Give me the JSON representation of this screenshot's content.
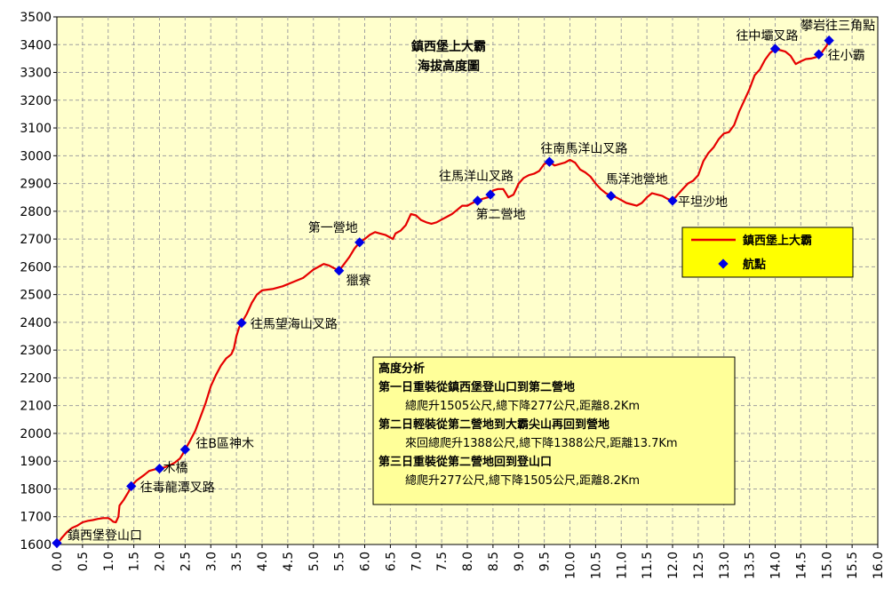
{
  "chart_data": {
    "type": "line",
    "title": "鎮西堡上大霸",
    "subtitle": "海拔高度圖",
    "xlabel": "",
    "ylabel": "",
    "xlim": [
      0,
      16
    ],
    "ylim": [
      1600,
      3500
    ],
    "x_ticks": [
      "0.0",
      "0.5",
      "1.0",
      "1.5",
      "2.0",
      "2.5",
      "3.0",
      "3.5",
      "4.0",
      "4.5",
      "5.0",
      "5.5",
      "6.0",
      "6.5",
      "7.0",
      "7.5",
      "8.0",
      "8.5",
      "9.0",
      "9.5",
      "10.0",
      "10.5",
      "11.0",
      "11.5",
      "12.0",
      "12.5",
      "13.0",
      "13.5",
      "14.0",
      "14.5",
      "15.0",
      "15.5",
      "16.0"
    ],
    "y_ticks": [
      "1600",
      "1700",
      "1800",
      "1900",
      "2000",
      "2100",
      "2200",
      "2300",
      "2400",
      "2500",
      "2600",
      "2700",
      "2800",
      "2900",
      "3000",
      "3100",
      "3200",
      "3300",
      "3400",
      "3500"
    ],
    "grid": true,
    "colors": {
      "plot_bg": "#FFFFCC",
      "line": "#E60000",
      "marker": "#0000E6",
      "grid": "#A0A0A0",
      "legend_bg": "#FFFF00",
      "note_bg": "#FFFF99"
    },
    "legend": {
      "position": "right",
      "entries": [
        {
          "label": "鎮西堡上大霸",
          "kind": "line"
        },
        {
          "label": "航點",
          "kind": "marker"
        }
      ]
    },
    "series": [
      {
        "name": "鎮西堡上大霸",
        "kind": "line",
        "points": [
          [
            0.0,
            1600
          ],
          [
            0.1,
            1625
          ],
          [
            0.2,
            1645
          ],
          [
            0.3,
            1660
          ],
          [
            0.4,
            1668
          ],
          [
            0.5,
            1680
          ],
          [
            0.6,
            1685
          ],
          [
            0.7,
            1688
          ],
          [
            0.8,
            1692
          ],
          [
            0.9,
            1695
          ],
          [
            1.0,
            1695
          ],
          [
            1.05,
            1690
          ],
          [
            1.1,
            1682
          ],
          [
            1.15,
            1680
          ],
          [
            1.2,
            1700
          ],
          [
            1.22,
            1740
          ],
          [
            1.3,
            1760
          ],
          [
            1.4,
            1790
          ],
          [
            1.45,
            1810
          ],
          [
            1.55,
            1830
          ],
          [
            1.7,
            1850
          ],
          [
            1.8,
            1865
          ],
          [
            1.9,
            1870
          ],
          [
            2.0,
            1873
          ],
          [
            2.1,
            1878
          ],
          [
            2.2,
            1885
          ],
          [
            2.3,
            1895
          ],
          [
            2.4,
            1910
          ],
          [
            2.45,
            1925
          ],
          [
            2.5,
            1942
          ],
          [
            2.6,
            1975
          ],
          [
            2.7,
            2010
          ],
          [
            2.8,
            2060
          ],
          [
            2.9,
            2110
          ],
          [
            3.0,
            2170
          ],
          [
            3.1,
            2210
          ],
          [
            3.2,
            2245
          ],
          [
            3.3,
            2270
          ],
          [
            3.4,
            2285
          ],
          [
            3.45,
            2305
          ],
          [
            3.5,
            2350
          ],
          [
            3.55,
            2380
          ],
          [
            3.6,
            2398
          ],
          [
            3.7,
            2430
          ],
          [
            3.8,
            2470
          ],
          [
            3.9,
            2500
          ],
          [
            4.0,
            2515
          ],
          [
            4.2,
            2520
          ],
          [
            4.4,
            2530
          ],
          [
            4.6,
            2545
          ],
          [
            4.8,
            2560
          ],
          [
            4.9,
            2575
          ],
          [
            5.0,
            2590
          ],
          [
            5.1,
            2600
          ],
          [
            5.2,
            2610
          ],
          [
            5.3,
            2605
          ],
          [
            5.4,
            2595
          ],
          [
            5.5,
            2586
          ],
          [
            5.6,
            2610
          ],
          [
            5.7,
            2635
          ],
          [
            5.8,
            2665
          ],
          [
            5.9,
            2688
          ],
          [
            6.0,
            2700
          ],
          [
            6.1,
            2715
          ],
          [
            6.2,
            2725
          ],
          [
            6.3,
            2720
          ],
          [
            6.4,
            2715
          ],
          [
            6.5,
            2705
          ],
          [
            6.55,
            2700
          ],
          [
            6.6,
            2720
          ],
          [
            6.7,
            2730
          ],
          [
            6.8,
            2750
          ],
          [
            6.9,
            2790
          ],
          [
            7.0,
            2785
          ],
          [
            7.1,
            2768
          ],
          [
            7.2,
            2760
          ],
          [
            7.3,
            2755
          ],
          [
            7.4,
            2760
          ],
          [
            7.5,
            2770
          ],
          [
            7.6,
            2780
          ],
          [
            7.7,
            2790
          ],
          [
            7.8,
            2805
          ],
          [
            7.9,
            2820
          ],
          [
            8.0,
            2820
          ],
          [
            8.1,
            2830
          ],
          [
            8.2,
            2838
          ],
          [
            8.3,
            2845
          ],
          [
            8.4,
            2850
          ],
          [
            8.45,
            2860
          ],
          [
            8.5,
            2875
          ],
          [
            8.6,
            2880
          ],
          [
            8.7,
            2880
          ],
          [
            8.8,
            2850
          ],
          [
            8.9,
            2860
          ],
          [
            9.0,
            2900
          ],
          [
            9.1,
            2920
          ],
          [
            9.2,
            2930
          ],
          [
            9.3,
            2935
          ],
          [
            9.4,
            2945
          ],
          [
            9.5,
            2970
          ],
          [
            9.6,
            2978
          ],
          [
            9.7,
            2965
          ],
          [
            9.8,
            2970
          ],
          [
            9.9,
            2975
          ],
          [
            10.0,
            2985
          ],
          [
            10.1,
            2975
          ],
          [
            10.2,
            2950
          ],
          [
            10.3,
            2940
          ],
          [
            10.4,
            2925
          ],
          [
            10.5,
            2900
          ],
          [
            10.6,
            2880
          ],
          [
            10.7,
            2865
          ],
          [
            10.8,
            2855
          ],
          [
            10.9,
            2850
          ],
          [
            11.0,
            2840
          ],
          [
            11.1,
            2830
          ],
          [
            11.2,
            2825
          ],
          [
            11.3,
            2820
          ],
          [
            11.4,
            2830
          ],
          [
            11.5,
            2850
          ],
          [
            11.6,
            2865
          ],
          [
            11.7,
            2860
          ],
          [
            11.8,
            2855
          ],
          [
            11.9,
            2845
          ],
          [
            12.0,
            2838
          ],
          [
            12.1,
            2860
          ],
          [
            12.2,
            2880
          ],
          [
            12.3,
            2900
          ],
          [
            12.4,
            2910
          ],
          [
            12.5,
            2930
          ],
          [
            12.6,
            2980
          ],
          [
            12.7,
            3010
          ],
          [
            12.8,
            3030
          ],
          [
            12.9,
            3060
          ],
          [
            13.0,
            3080
          ],
          [
            13.1,
            3085
          ],
          [
            13.2,
            3110
          ],
          [
            13.3,
            3160
          ],
          [
            13.4,
            3200
          ],
          [
            13.5,
            3240
          ],
          [
            13.6,
            3290
          ],
          [
            13.7,
            3310
          ],
          [
            13.8,
            3345
          ],
          [
            13.9,
            3370
          ],
          [
            14.0,
            3385
          ],
          [
            14.1,
            3380
          ],
          [
            14.2,
            3375
          ],
          [
            14.3,
            3360
          ],
          [
            14.4,
            3330
          ],
          [
            14.5,
            3340
          ],
          [
            14.6,
            3348
          ],
          [
            14.7,
            3350
          ],
          [
            14.8,
            3355
          ],
          [
            14.9,
            3370
          ],
          [
            15.0,
            3395
          ],
          [
            15.05,
            3415
          ]
        ]
      },
      {
        "name": "航點",
        "kind": "marker",
        "points": [
          {
            "x": 0.0,
            "y": 1605,
            "label": "鎮西堡登山口"
          },
          {
            "x": 1.45,
            "y": 1810,
            "label": "往毒龍潭叉路"
          },
          {
            "x": 2.0,
            "y": 1873,
            "label": "木橋"
          },
          {
            "x": 2.5,
            "y": 1942,
            "label": "往B區神木"
          },
          {
            "x": 3.6,
            "y": 2398,
            "label": "往馬望海山叉路"
          },
          {
            "x": 5.5,
            "y": 2586,
            "label": "獵寮"
          },
          {
            "x": 5.9,
            "y": 2688,
            "label": "第一營地"
          },
          {
            "x": 8.2,
            "y": 2838,
            "label": "第二營地"
          },
          {
            "x": 8.45,
            "y": 2860,
            "label": "往馬洋山叉路"
          },
          {
            "x": 9.6,
            "y": 2978,
            "label": "往南馬洋山叉路"
          },
          {
            "x": 10.8,
            "y": 2855,
            "label": "馬洋池營地"
          },
          {
            "x": 12.0,
            "y": 2838,
            "label": "平坦沙地"
          },
          {
            "x": 14.0,
            "y": 3385,
            "label": "往中壩叉路"
          },
          {
            "x": 14.85,
            "y": 3365,
            "label": "往小霸"
          },
          {
            "x": 15.05,
            "y": 3415,
            "label": "攀岩往三角點"
          }
        ]
      }
    ],
    "annotations": [
      "高度分析",
      "第一日重裝從鎮西堡登山口到第二營地",
      "總爬升1505公尺,總下降277公尺,距離8.2Km",
      "第二日輕裝從第二營地到大霸尖山再回到營地",
      "來回總爬升1388公尺,總下降1388公尺,距離13.7Km",
      "第三日重裝從第二營地回到登山口",
      "總爬升277公尺,總下降1505公尺,距離8.2Km"
    ]
  }
}
